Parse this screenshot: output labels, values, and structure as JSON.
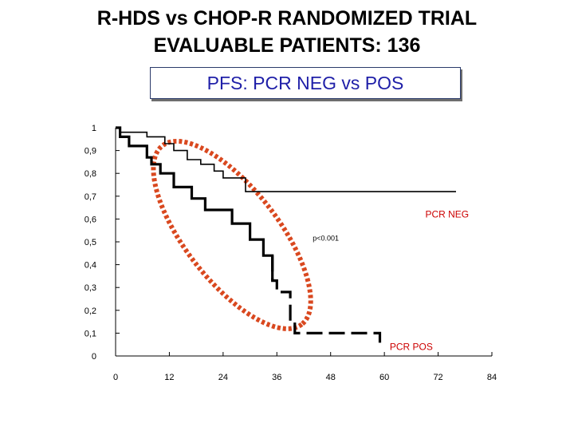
{
  "header": {
    "title_line1": "R-HDS vs CHOP-R  RANDOMIZED TRIAL",
    "title_line2": "EVALUABLE PATIENTS: 136",
    "subtitle": "PFS: PCR NEG vs POS"
  },
  "chart_data": {
    "type": "line",
    "subtype": "kaplan-meier step",
    "title": "PFS: PCR NEG vs POS",
    "xlabel": "",
    "ylabel": "",
    "xlim": [
      0,
      84
    ],
    "ylim": [
      0,
      1
    ],
    "x_ticks": [
      "0",
      "12",
      "24",
      "36",
      "48",
      "60",
      "72",
      "84"
    ],
    "x_tick_values": [
      0,
      12,
      24,
      36,
      48,
      60,
      72,
      84
    ],
    "y_ticks": [
      "0",
      "0,1",
      "0,2",
      "0,3",
      "0,4",
      "0,5",
      "0,6",
      "0,7",
      "0,8",
      "0,9",
      "1"
    ],
    "y_tick_values": [
      0,
      0.1,
      0.2,
      0.3,
      0.4,
      0.5,
      0.6,
      0.7,
      0.8,
      0.9,
      1
    ],
    "series": [
      {
        "name": "PCR NEG",
        "style": "thin-solid",
        "points": [
          [
            0,
            1
          ],
          [
            1,
            1
          ],
          [
            1,
            0.98
          ],
          [
            7,
            0.98
          ],
          [
            7,
            0.96
          ],
          [
            11,
            0.96
          ],
          [
            11,
            0.93
          ],
          [
            13,
            0.93
          ],
          [
            13,
            0.9
          ],
          [
            16,
            0.9
          ],
          [
            16,
            0.86
          ],
          [
            19,
            0.86
          ],
          [
            19,
            0.84
          ],
          [
            22,
            0.84
          ],
          [
            22,
            0.81
          ],
          [
            24,
            0.81
          ],
          [
            24,
            0.78
          ],
          [
            29,
            0.78
          ],
          [
            29,
            0.72
          ],
          [
            76,
            0.72
          ]
        ]
      },
      {
        "name": "PCR POS",
        "style": "thick-solid-then-dashed",
        "dashed_from_x": 35,
        "points": [
          [
            0,
            1
          ],
          [
            1,
            1
          ],
          [
            1,
            0.96
          ],
          [
            3,
            0.96
          ],
          [
            3,
            0.92
          ],
          [
            7,
            0.92
          ],
          [
            7,
            0.87
          ],
          [
            8,
            0.87
          ],
          [
            8,
            0.84
          ],
          [
            10,
            0.84
          ],
          [
            10,
            0.8
          ],
          [
            13,
            0.8
          ],
          [
            13,
            0.74
          ],
          [
            17,
            0.74
          ],
          [
            17,
            0.69
          ],
          [
            20,
            0.69
          ],
          [
            20,
            0.64
          ],
          [
            26,
            0.64
          ],
          [
            26,
            0.58
          ],
          [
            30,
            0.58
          ],
          [
            30,
            0.51
          ],
          [
            33,
            0.51
          ],
          [
            33,
            0.44
          ],
          [
            35,
            0.44
          ],
          [
            35,
            0.33
          ],
          [
            36,
            0.33
          ],
          [
            36,
            0.28
          ],
          [
            39,
            0.28
          ],
          [
            39,
            0.16
          ],
          [
            40,
            0.16
          ],
          [
            40,
            0.1
          ],
          [
            59,
            0.1
          ],
          [
            59,
            0.03
          ]
        ]
      }
    ],
    "annotations": [
      {
        "text": "PCR NEG",
        "x": 74,
        "y": 0.62,
        "color": "#cc0000"
      },
      {
        "text": "PCR POS",
        "x": 66,
        "y": 0.04,
        "color": "#cc0000"
      },
      {
        "text": "p<0.001",
        "x": 44,
        "y": 0.52,
        "color": "#000000"
      }
    ],
    "highlight_ellipse": {
      "color": "#d9481f",
      "style": "dotted",
      "center_x": 26,
      "center_y": 0.53,
      "around": "PCR POS descent"
    }
  }
}
